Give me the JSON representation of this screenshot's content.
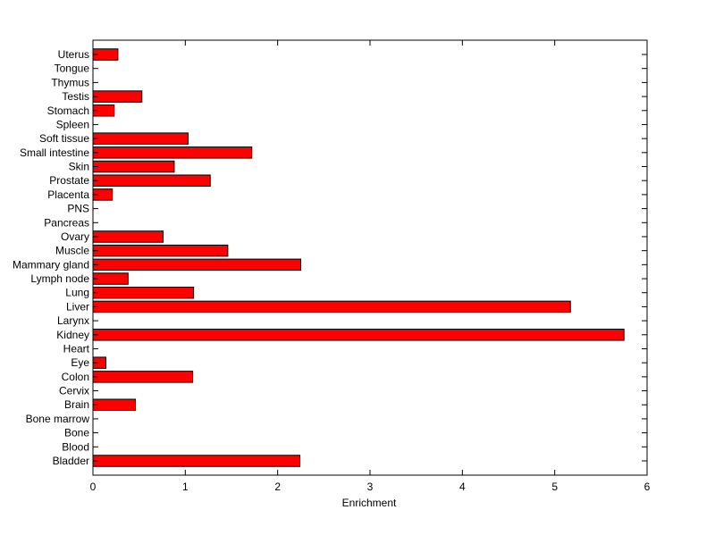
{
  "chart_data": {
    "type": "bar",
    "orientation": "horizontal",
    "title": "",
    "xlabel": "Enrichment",
    "ylabel": "",
    "xlim": [
      0,
      6
    ],
    "xticks": [
      0,
      1,
      2,
      3,
      4,
      5,
      6
    ],
    "grid": false,
    "legend": "none",
    "bar_color": "#ff0000",
    "bar_edge_color": "#000000",
    "categories": [
      "Bladder",
      "Blood",
      "Bone",
      "Bone marrow",
      "Brain",
      "Cervix",
      "Colon",
      "Eye",
      "Heart",
      "Kidney",
      "Larynx",
      "Liver",
      "Lung",
      "Lymph node",
      "Mammary gland",
      "Muscle",
      "Ovary",
      "Pancreas",
      "PNS",
      "Placenta",
      "Prostate",
      "Skin",
      "Small intestine",
      "Soft tissue",
      "Spleen",
      "Stomach",
      "Testis",
      "Thymus",
      "Tongue",
      "Uterus"
    ],
    "values": [
      2.24,
      0,
      0,
      0,
      0.46,
      0,
      1.08,
      0.14,
      0,
      5.75,
      0,
      5.17,
      1.09,
      0.38,
      2.25,
      1.46,
      0.76,
      0,
      0,
      0.21,
      1.27,
      0.88,
      1.72,
      1.03,
      0,
      0.23,
      0.53,
      0,
      0,
      0.27
    ]
  }
}
